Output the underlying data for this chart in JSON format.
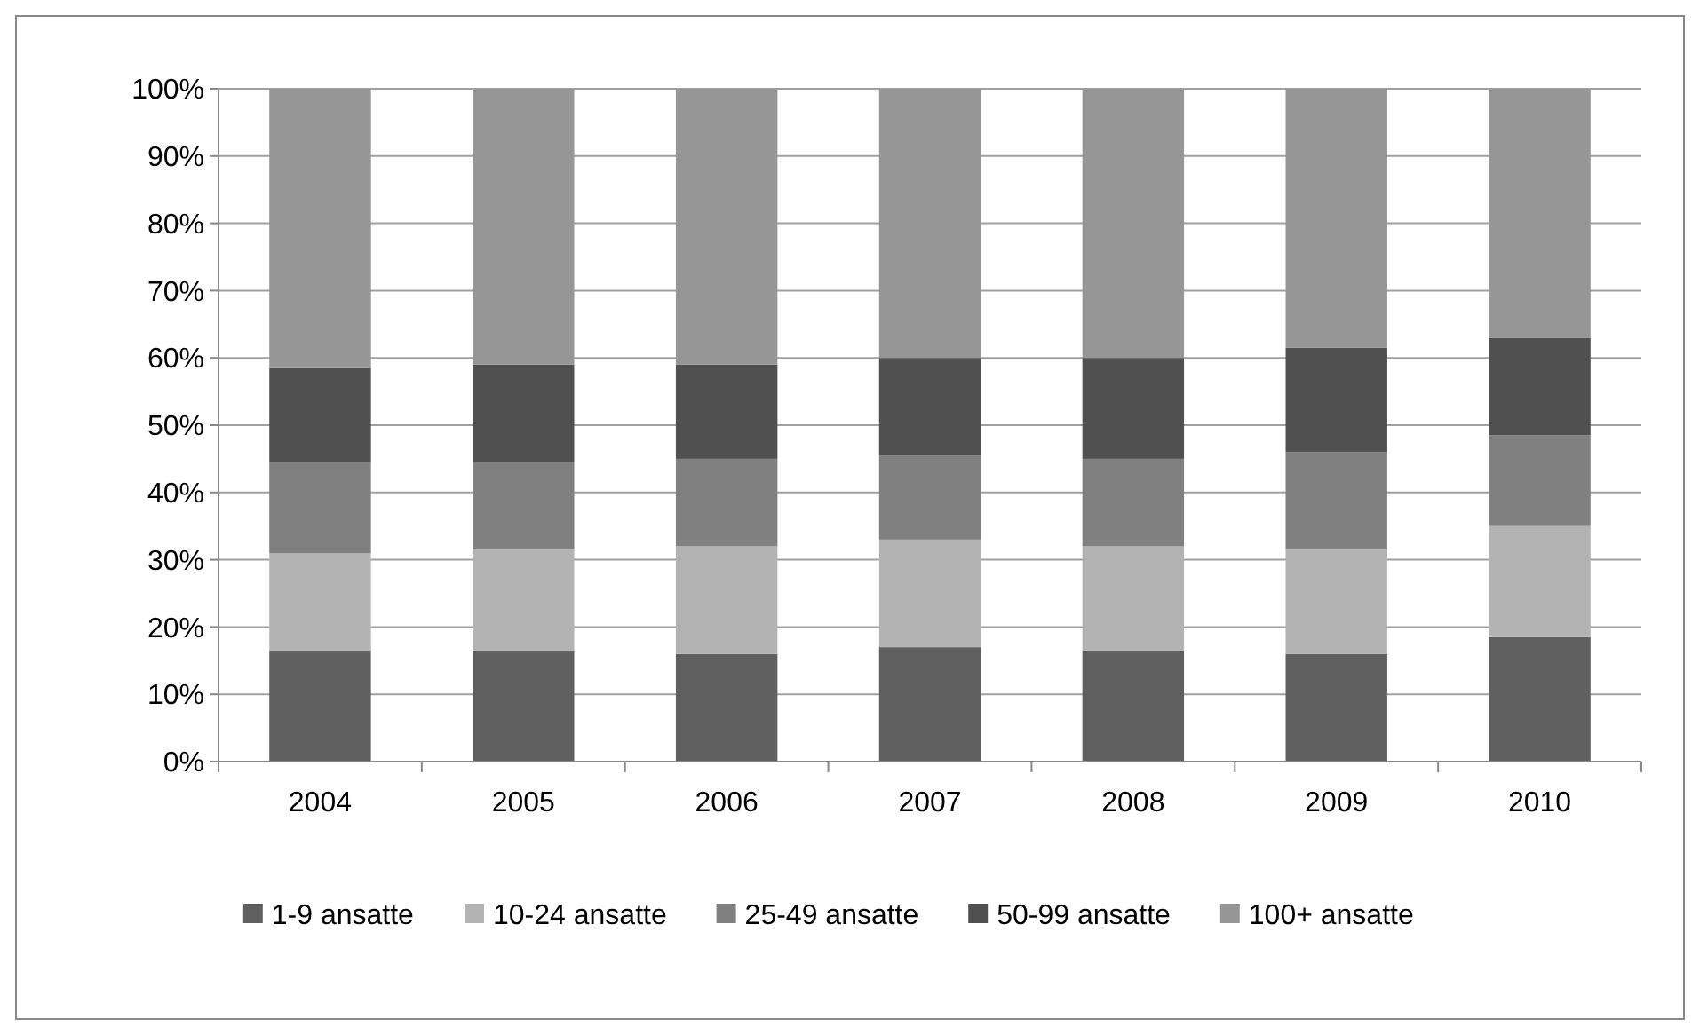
{
  "chart_data": {
    "type": "bar",
    "stacked": true,
    "categories": [
      "2004",
      "2005",
      "2006",
      "2007",
      "2008",
      "2009",
      "2010"
    ],
    "series": [
      {
        "name": "1-9 ansatte",
        "color": "#606060",
        "values": [
          16.5,
          16.5,
          16,
          17,
          16.5,
          16,
          18.5
        ]
      },
      {
        "name": "10-24 ansatte",
        "color": "#b3b3b3",
        "values": [
          14.5,
          15,
          16,
          16,
          15.5,
          15.5,
          16.5
        ]
      },
      {
        "name": "25-49 ansatte",
        "color": "#808080",
        "values": [
          13.5,
          13,
          13,
          12.5,
          13,
          14.5,
          13.5
        ]
      },
      {
        "name": "50-99 ansatte",
        "color": "#505050",
        "values": [
          14,
          14.5,
          14,
          14.5,
          15,
          15.5,
          14.5
        ]
      },
      {
        "name": "100+ ansatte",
        "color": "#969696",
        "values": [
          41.5,
          41,
          41,
          40,
          40,
          38.5,
          37
        ]
      }
    ],
    "ylim": [
      0,
      100
    ],
    "yticks": [
      {
        "value": 0,
        "label": "0%"
      },
      {
        "value": 10,
        "label": "10%"
      },
      {
        "value": 20,
        "label": "20%"
      },
      {
        "value": 30,
        "label": "30%"
      },
      {
        "value": 40,
        "label": "40%"
      },
      {
        "value": 50,
        "label": "50%"
      },
      {
        "value": 60,
        "label": "60%"
      },
      {
        "value": 70,
        "label": "70%"
      },
      {
        "value": 80,
        "label": "80%"
      },
      {
        "value": 90,
        "label": "90%"
      },
      {
        "value": 100,
        "label": "100%"
      }
    ],
    "grid": true,
    "legend": "bottom"
  }
}
